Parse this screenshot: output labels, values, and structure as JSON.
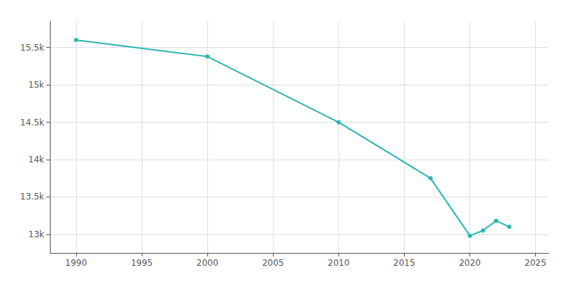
{
  "chart_data": {
    "type": "line",
    "x": [
      1990,
      2000,
      2010,
      2017,
      2020,
      2021,
      2022,
      2023
    ],
    "values": [
      15600,
      15380,
      14500,
      13750,
      12980,
      13050,
      13180,
      13100
    ],
    "color": "#2ab5b5",
    "marker": "circle",
    "xlim": [
      1988,
      2026
    ],
    "xticks": [
      1990,
      1995,
      2000,
      2005,
      2010,
      2015,
      2020,
      2025
    ],
    "ylim": [
      12750,
      15850
    ],
    "yticks": [
      {
        "value": 13000,
        "label": "13k"
      },
      {
        "value": 13500,
        "label": "13.5k"
      },
      {
        "value": 14000,
        "label": "14k"
      },
      {
        "value": 14500,
        "label": "14.5k"
      },
      {
        "value": 15000,
        "label": "15k"
      },
      {
        "value": 15500,
        "label": "15.5k"
      }
    ],
    "grid": true
  }
}
